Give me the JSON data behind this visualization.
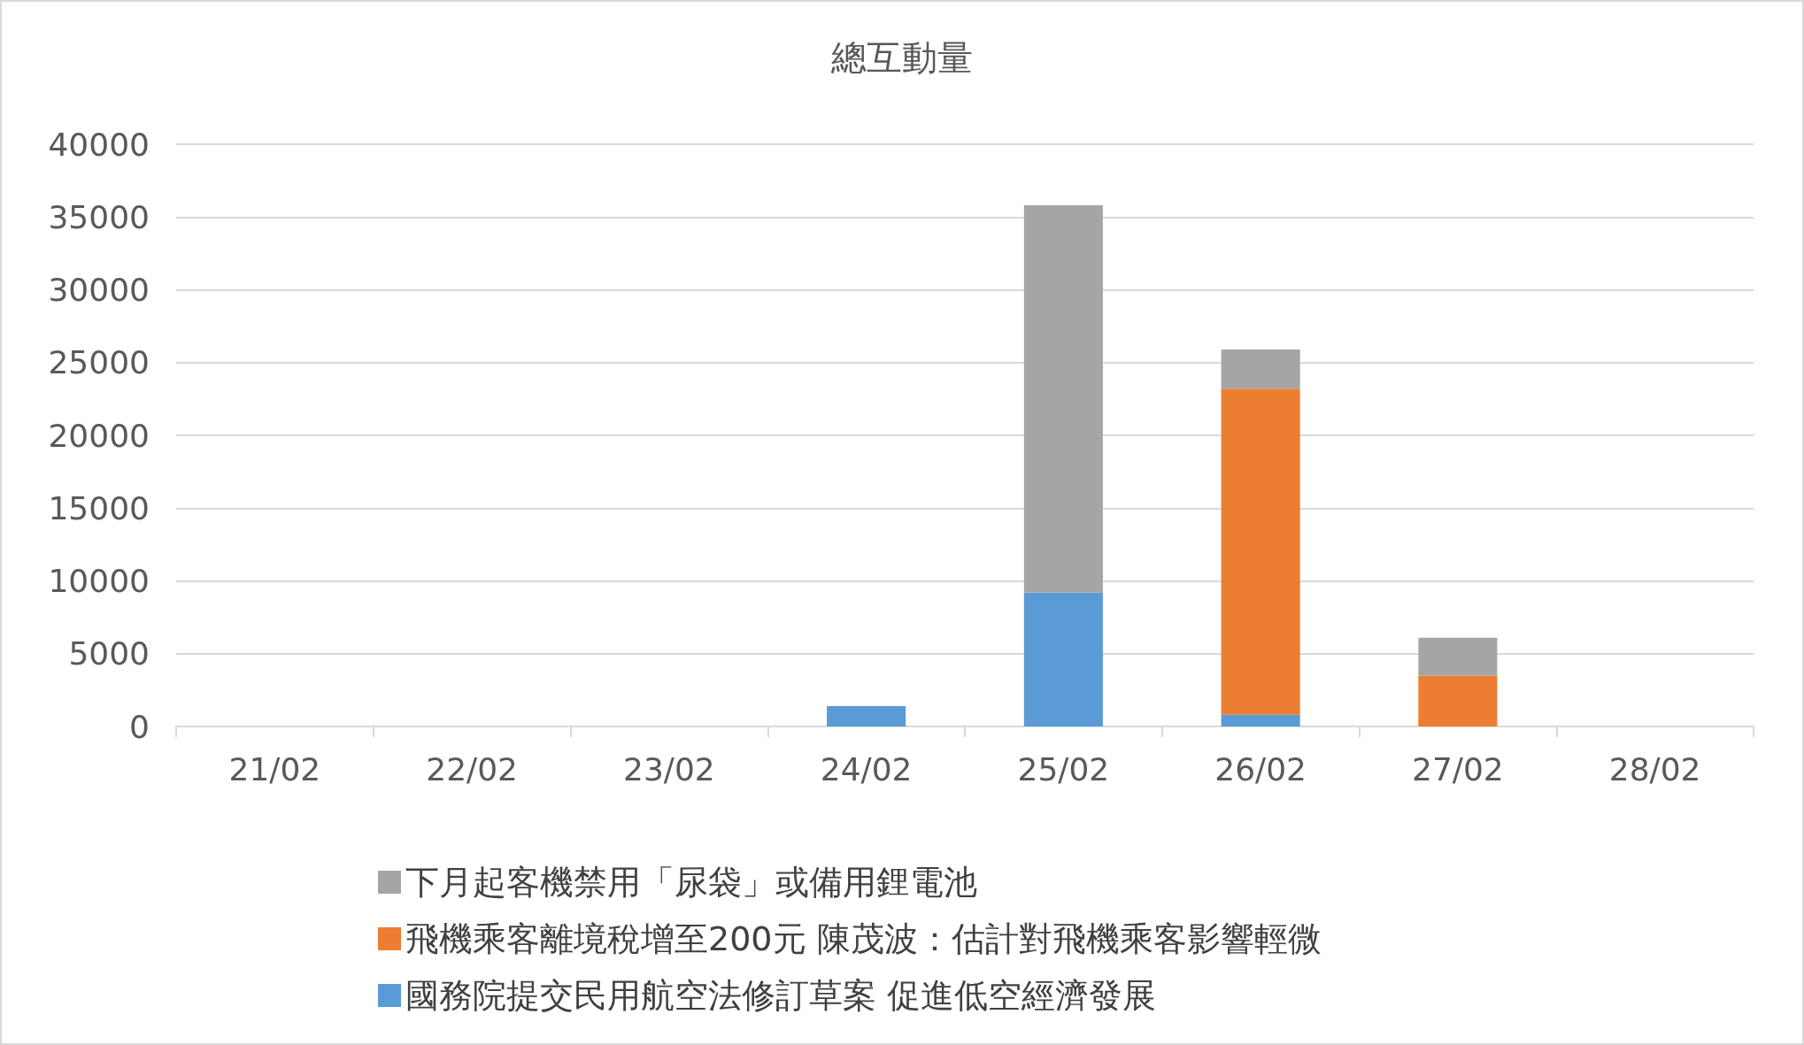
{
  "chart_data": {
    "type": "bar",
    "title": "總互動量",
    "stacked": true,
    "categories": [
      "21/02",
      "22/02",
      "23/02",
      "24/02",
      "25/02",
      "26/02",
      "27/02",
      "28/02"
    ],
    "series": [
      {
        "name": "國務院提交民用航空法修訂草案 促進低空經濟發展",
        "color": "#5b9bd5",
        "values": [
          0,
          0,
          0,
          1400,
          9200,
          800,
          0,
          0
        ]
      },
      {
        "name": "飛機乘客離境稅增至200元 陳茂波：估計對飛機乘客影響輕微",
        "color": "#ed7d31",
        "values": [
          0,
          0,
          0,
          0,
          0,
          22400,
          3500,
          0
        ]
      },
      {
        "name": "下月起客機禁用「尿袋」或備用鋰電池",
        "color": "#a5a5a5",
        "values": [
          0,
          0,
          0,
          0,
          26600,
          2700,
          2600,
          0
        ]
      }
    ],
    "ylim": [
      0,
      40000
    ],
    "yticks": [
      0,
      5000,
      10000,
      15000,
      20000,
      25000,
      30000,
      35000,
      40000
    ],
    "grid": "y",
    "legend": "bottom"
  }
}
